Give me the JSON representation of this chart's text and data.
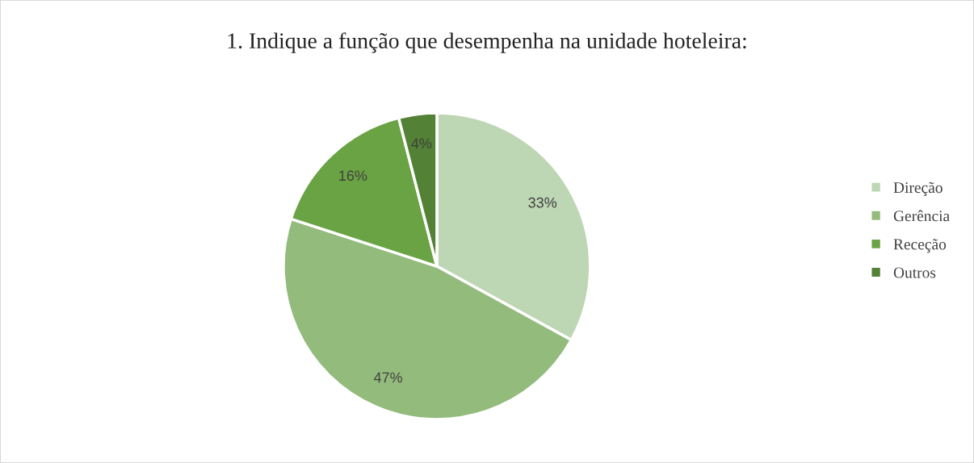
{
  "chart_data": {
    "type": "pie",
    "title": "1. Indique a função que desempenha na unidade hoteleira:",
    "categories": [
      "Direção",
      "Gerência",
      "Receção",
      "Outros"
    ],
    "values": [
      33,
      47,
      16,
      4
    ],
    "colors": [
      "#bdd6b3",
      "#93bb7b",
      "#6aa343",
      "#538135"
    ],
    "value_labels": [
      "33%",
      "47%",
      "16%",
      "4%"
    ],
    "legend": "right"
  }
}
